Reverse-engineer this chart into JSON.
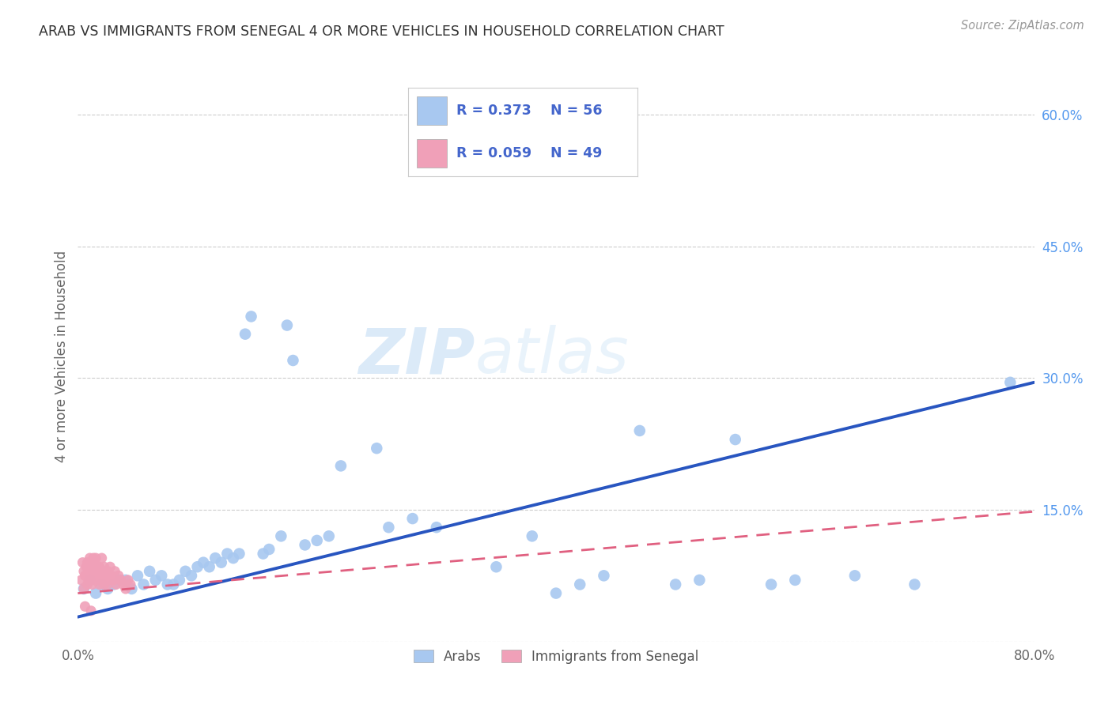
{
  "title": "ARAB VS IMMIGRANTS FROM SENEGAL 4 OR MORE VEHICLES IN HOUSEHOLD CORRELATION CHART",
  "source": "Source: ZipAtlas.com",
  "ylabel": "4 or more Vehicles in Household",
  "xlim": [
    0,
    0.8
  ],
  "ylim": [
    0,
    0.65
  ],
  "yticks": [
    0.0,
    0.15,
    0.3,
    0.45,
    0.6
  ],
  "right_yticklabels": [
    "",
    "15.0%",
    "30.0%",
    "45.0%",
    "60.0%"
  ],
  "grid_color": "#cccccc",
  "background_color": "#ffffff",
  "watermark_zip": "ZIP",
  "watermark_atlas": "atlas",
  "legend_arab_r": "R = 0.373",
  "legend_arab_n": "N = 56",
  "legend_sen_r": "R = 0.059",
  "legend_sen_n": "N = 49",
  "arab_color": "#a8c8f0",
  "senegal_color": "#f0a0b8",
  "arab_line_color": "#2855c0",
  "senegal_line_color": "#e06080",
  "arab_x": [
    0.005,
    0.01,
    0.015,
    0.02,
    0.025,
    0.03,
    0.035,
    0.04,
    0.045,
    0.05,
    0.055,
    0.06,
    0.065,
    0.07,
    0.075,
    0.08,
    0.085,
    0.09,
    0.095,
    0.1,
    0.105,
    0.11,
    0.115,
    0.12,
    0.125,
    0.13,
    0.135,
    0.14,
    0.145,
    0.155,
    0.16,
    0.17,
    0.175,
    0.18,
    0.19,
    0.2,
    0.21,
    0.22,
    0.25,
    0.26,
    0.28,
    0.3,
    0.35,
    0.38,
    0.4,
    0.42,
    0.44,
    0.47,
    0.5,
    0.52,
    0.55,
    0.58,
    0.6,
    0.65,
    0.7,
    0.78
  ],
  "arab_y": [
    0.06,
    0.07,
    0.055,
    0.065,
    0.06,
    0.065,
    0.07,
    0.07,
    0.06,
    0.075,
    0.065,
    0.08,
    0.07,
    0.075,
    0.065,
    0.065,
    0.07,
    0.08,
    0.075,
    0.085,
    0.09,
    0.085,
    0.095,
    0.09,
    0.1,
    0.095,
    0.1,
    0.35,
    0.37,
    0.1,
    0.105,
    0.12,
    0.36,
    0.32,
    0.11,
    0.115,
    0.12,
    0.2,
    0.22,
    0.13,
    0.14,
    0.13,
    0.085,
    0.12,
    0.055,
    0.065,
    0.075,
    0.24,
    0.065,
    0.07,
    0.23,
    0.065,
    0.07,
    0.075,
    0.065,
    0.295
  ],
  "senegal_x": [
    0.003,
    0.004,
    0.005,
    0.005,
    0.006,
    0.007,
    0.008,
    0.008,
    0.009,
    0.01,
    0.01,
    0.011,
    0.012,
    0.012,
    0.013,
    0.013,
    0.014,
    0.014,
    0.015,
    0.015,
    0.016,
    0.016,
    0.017,
    0.018,
    0.018,
    0.019,
    0.02,
    0.02,
    0.021,
    0.022,
    0.022,
    0.023,
    0.024,
    0.025,
    0.025,
    0.026,
    0.027,
    0.028,
    0.03,
    0.031,
    0.032,
    0.034,
    0.036,
    0.038,
    0.04,
    0.042,
    0.044,
    0.006,
    0.011
  ],
  "senegal_y": [
    0.07,
    0.09,
    0.06,
    0.08,
    0.075,
    0.085,
    0.065,
    0.09,
    0.07,
    0.08,
    0.095,
    0.075,
    0.085,
    0.065,
    0.08,
    0.095,
    0.07,
    0.09,
    0.075,
    0.095,
    0.07,
    0.085,
    0.08,
    0.065,
    0.085,
    0.07,
    0.08,
    0.095,
    0.075,
    0.085,
    0.065,
    0.08,
    0.075,
    0.065,
    0.08,
    0.07,
    0.085,
    0.075,
    0.07,
    0.08,
    0.065,
    0.075,
    0.07,
    0.065,
    0.06,
    0.07,
    0.065,
    0.04,
    0.035
  ],
  "legend_labels": [
    "Arabs",
    "Immigrants from Senegal"
  ],
  "arab_line_x0": 0.0,
  "arab_line_y0": 0.028,
  "arab_line_x1": 0.8,
  "arab_line_y1": 0.295,
  "sen_line_x0": 0.0,
  "sen_line_y0": 0.055,
  "sen_line_x1": 0.8,
  "sen_line_y1": 0.148
}
